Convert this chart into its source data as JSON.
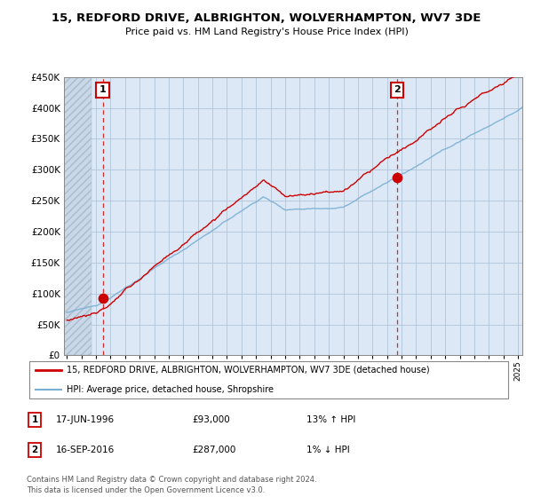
{
  "title": "15, REDFORD DRIVE, ALBRIGHTON, WOLVERHAMPTON, WV7 3DE",
  "subtitle": "Price paid vs. HM Land Registry's House Price Index (HPI)",
  "sale1_date": "17-JUN-1996",
  "sale1_price": 93000,
  "sale1_hpi_pct": "13% ↑ HPI",
  "sale1_label": "1",
  "sale2_date": "16-SEP-2016",
  "sale2_price": 287000,
  "sale2_hpi_pct": "1% ↓ HPI",
  "sale2_label": "2",
  "legend_line1": "15, REDFORD DRIVE, ALBRIGHTON, WOLVERHAMPTON, WV7 3DE (detached house)",
  "legend_line2": "HPI: Average price, detached house, Shropshire",
  "footer": "Contains HM Land Registry data © Crown copyright and database right 2024.\nThis data is licensed under the Open Government Licence v3.0.",
  "line_color": "#cc0000",
  "hpi_color": "#7aafd4",
  "bg_color": "#dce8f5",
  "hatch_color": "#c0d0e0",
  "ylim": [
    0,
    450000
  ],
  "yticks": [
    0,
    50000,
    100000,
    150000,
    200000,
    250000,
    300000,
    350000,
    400000,
    450000
  ],
  "sale1_x": 1996.46,
  "sale1_y": 93000,
  "sale2_x": 2016.71,
  "sale2_y": 287000,
  "xmin": 1993.8,
  "xmax": 2025.3
}
